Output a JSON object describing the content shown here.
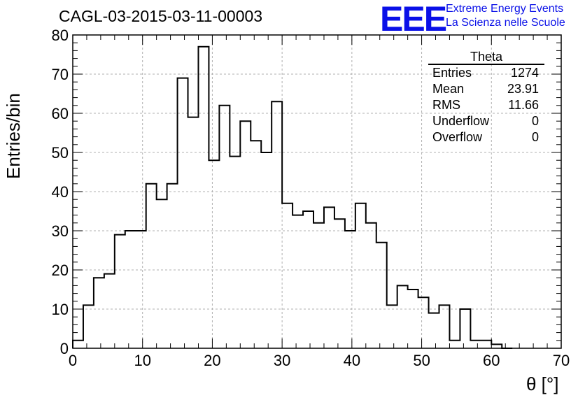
{
  "header": {
    "title": "CAGL-03-2015-03-11-00003",
    "logo_text": "EEE",
    "logo_line1": "Extreme Energy Events",
    "logo_line2": "La Scienza nelle Scuole",
    "accent_color": "#0a10e8"
  },
  "stats": {
    "name": "Theta",
    "rows": [
      {
        "label": "Entries",
        "value": "1274"
      },
      {
        "label": "Mean",
        "value": "23.91"
      },
      {
        "label": "RMS",
        "value": "11.66"
      },
      {
        "label": "Underflow",
        "value": "0"
      },
      {
        "label": "Overflow",
        "value": "0"
      }
    ]
  },
  "chart_data": {
    "type": "bar",
    "histogram": true,
    "title": "CAGL-03-2015-03-11-00003",
    "xlabel": "θ [°]",
    "ylabel": "Entries/bin",
    "xlim": [
      0,
      70
    ],
    "ylim": [
      0,
      80
    ],
    "grid": true,
    "bin_width": 1.5,
    "bin_edges_start": 0,
    "values": [
      2,
      11,
      18,
      19,
      29,
      30,
      30,
      42,
      38,
      42,
      69,
      59,
      77,
      48,
      62,
      49,
      58,
      53,
      50,
      63,
      37,
      34,
      35,
      32,
      36,
      33,
      30,
      37,
      32,
      27,
      11,
      16,
      15,
      13,
      9,
      11,
      2,
      10,
      2,
      2,
      1,
      0
    ],
    "xticks": [
      "0",
      "10",
      "20",
      "30",
      "40",
      "50",
      "60",
      "70"
    ],
    "yticks": [
      "0",
      "10",
      "20",
      "30",
      "40",
      "50",
      "60",
      "70",
      "80"
    ]
  }
}
